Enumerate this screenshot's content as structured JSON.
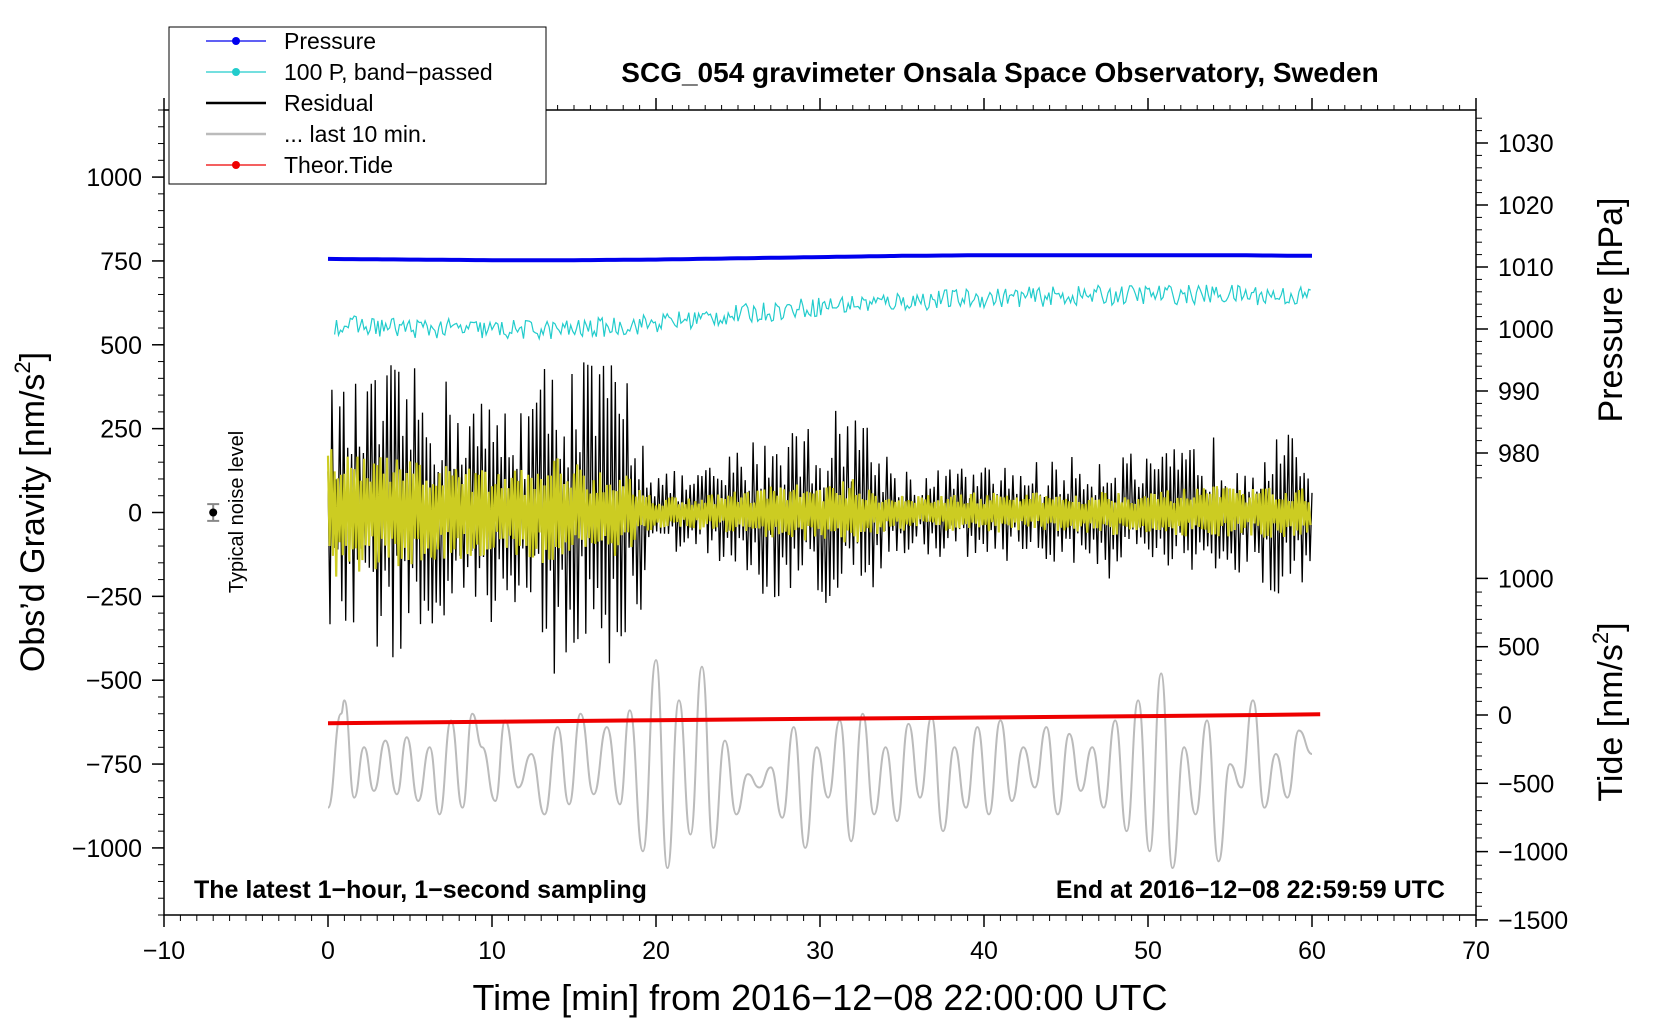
{
  "chart_data": {
    "type": "line",
    "title": "SCG_054 gravimeter Onsala Space Observatory, Sweden",
    "xlabel": "Time [min] from 2016−12−08 22:00:00 UTC",
    "ylabel_left_main": "Obs’d Gravity [nm/s",
    "ylabel_left_sup": "2",
    "ylabel_left_end": "]",
    "ylabel_right_pressure": "Pressure [hPa]",
    "ylabel_right_tide_main": "Tide [nm/s",
    "ylabel_right_tide_sup": "2",
    "ylabel_right_tide_end": "]",
    "xlim": [
      -10,
      70
    ],
    "ylim": [
      -1200,
      1200
    ],
    "pressure_lim": [
      972,
      1035
    ],
    "tide_lim": [
      -1500,
      1000
    ],
    "x_ticks": [
      {
        "v": -10,
        "label": "−10"
      },
      {
        "v": 0,
        "label": "0"
      },
      {
        "v": 10,
        "label": "10"
      },
      {
        "v": 20,
        "label": "20"
      },
      {
        "v": 30,
        "label": "30"
      },
      {
        "v": 40,
        "label": "40"
      },
      {
        "v": 50,
        "label": "50"
      },
      {
        "v": 60,
        "label": "60"
      },
      {
        "v": 70,
        "label": "70"
      }
    ],
    "y_ticks": [
      {
        "v": 1000,
        "label": "1000"
      },
      {
        "v": 750,
        "label": "750"
      },
      {
        "v": 500,
        "label": "500"
      },
      {
        "v": 250,
        "label": "250"
      },
      {
        "v": 0,
        "label": "0"
      },
      {
        "v": -250,
        "label": "−250"
      },
      {
        "v": -500,
        "label": "−500"
      },
      {
        "v": -750,
        "label": "−750"
      },
      {
        "v": -1000,
        "label": "−1000"
      }
    ],
    "pressure_ticks": [
      {
        "v": 1030,
        "label": "1030"
      },
      {
        "v": 1020,
        "label": "1020"
      },
      {
        "v": 1010,
        "label": "1010"
      },
      {
        "v": 1000,
        "label": "1000"
      },
      {
        "v": 990,
        "label": "990"
      },
      {
        "v": 980,
        "label": "980"
      }
    ],
    "tide_ticks": [
      {
        "v": 1000,
        "label": "1000"
      },
      {
        "v": 500,
        "label": "500"
      },
      {
        "v": 0,
        "label": "0"
      },
      {
        "v": -500,
        "label": "−500"
      },
      {
        "v": -1000,
        "label": "−1000"
      },
      {
        "v": -1500,
        "label": "−1500"
      }
    ],
    "legend": [
      {
        "label": "Pressure",
        "color": "#0000ee",
        "marker": true
      },
      {
        "label": "100 P, band−passed",
        "color": "#22cccc",
        "marker": true
      },
      {
        "label": "Residual",
        "color": "#000000",
        "marker": false
      },
      {
        "label": "... last 10 min.",
        "color": "#bbbbbb",
        "marker": false
      },
      {
        "label": "Theor.Tide",
        "color": "#ee0000",
        "marker": true
      }
    ],
    "annotations": {
      "bottom_left": "The latest 1−hour, 1−second sampling",
      "bottom_right": "End at 2016−12−08 22:59:59 UTC",
      "noise_label": "Typical noise level"
    },
    "noise_point": {
      "x": -7,
      "y": 0,
      "err": 25
    },
    "series": [
      {
        "name": "Pressure",
        "color": "#0000ee",
        "axis": "pressure",
        "x": [
          0,
          5,
          10,
          15,
          20,
          25,
          30,
          35,
          40,
          45,
          50,
          55,
          60
        ],
        "values": [
          1011.3,
          1011.2,
          1011.1,
          1011.1,
          1011.2,
          1011.4,
          1011.6,
          1011.8,
          1011.9,
          1011.9,
          1011.9,
          1011.9,
          1011.8
        ]
      },
      {
        "name": "100 P, band-passed",
        "color": "#22cccc",
        "axis": "gravity",
        "x": [
          0,
          5,
          10,
          15,
          20,
          25,
          30,
          35,
          40,
          45,
          50,
          55,
          60
        ],
        "values": [
          560,
          550,
          545,
          545,
          565,
          590,
          615,
          630,
          640,
          645,
          650,
          650,
          645
        ],
        "noise_amplitude": 30
      },
      {
        "name": "Residual",
        "color": "#000000",
        "axis": "gravity",
        "envelope_x": [
          0,
          2,
          4,
          6,
          8,
          10,
          12,
          14,
          16,
          18,
          19,
          20,
          22,
          24,
          26,
          28,
          30,
          32,
          34,
          36,
          38,
          40,
          42,
          44,
          46,
          48,
          50,
          52,
          54,
          56,
          58,
          60
        ],
        "envelope": [
          380,
          390,
          450,
          420,
          400,
          330,
          380,
          500,
          480,
          470,
          320,
          130,
          120,
          160,
          230,
          300,
          260,
          370,
          190,
          120,
          140,
          140,
          150,
          160,
          170,
          210,
          160,
          200,
          230,
          200,
          250,
          200
        ]
      },
      {
        "name": "Band-passed residual",
        "color": "#cccc22",
        "axis": "gravity",
        "envelope_x": [
          0,
          2,
          4,
          6,
          8,
          10,
          12,
          14,
          16,
          18,
          19,
          20,
          22,
          24,
          26,
          28,
          30,
          32,
          34,
          36,
          38,
          40,
          42,
          44,
          46,
          48,
          50,
          52,
          54,
          56,
          58,
          60
        ],
        "envelope": [
          200,
          180,
          170,
          150,
          140,
          130,
          130,
          170,
          140,
          130,
          80,
          50,
          50,
          60,
          70,
          90,
          80,
          100,
          60,
          50,
          60,
          60,
          60,
          60,
          60,
          70,
          60,
          70,
          80,
          70,
          80,
          70
        ]
      },
      {
        "name": "... last 10 min.",
        "color": "#bbbbbb",
        "axis": "gravity",
        "x": [
          0,
          0.8,
          1,
          1.6,
          2.2,
          2.8,
          3.5,
          4.2,
          4.8,
          5.5,
          6.2,
          6.8,
          7.5,
          8.2,
          8.8,
          9.4,
          10.2,
          10.8,
          11.6,
          12.4,
          13.2,
          14,
          14.7,
          15.4,
          16.2,
          17,
          17.8,
          18.4,
          19.2,
          20,
          20.7,
          21.4,
          22.1,
          22.8,
          23.5,
          24.2,
          24.9,
          25.6,
          26.3,
          27,
          27.7,
          28.4,
          29.1,
          29.8,
          30.5,
          31.2,
          31.9,
          32.6,
          33.3,
          34,
          34.7,
          35.4,
          36.1,
          36.8,
          37.5,
          38.2,
          38.9,
          39.6,
          40.3,
          41,
          41.7,
          42.4,
          43.1,
          43.8,
          44.5,
          45.2,
          45.9,
          46.6,
          47.3,
          48,
          48.7,
          49.4,
          50.1,
          50.8,
          51.5,
          52.2,
          52.9,
          53.6,
          54.3,
          55,
          55.7,
          56.4,
          57.1,
          57.8,
          58.5,
          59.2,
          60
        ],
        "values": [
          -880,
          -600,
          -560,
          -850,
          -700,
          -830,
          -680,
          -840,
          -670,
          -860,
          -700,
          -900,
          -620,
          -880,
          -600,
          -700,
          -860,
          -620,
          -820,
          -720,
          -900,
          -640,
          -870,
          -600,
          -840,
          -640,
          -870,
          -590,
          -1010,
          -440,
          -1060,
          -560,
          -960,
          -460,
          -1000,
          -680,
          -900,
          -780,
          -820,
          -760,
          -910,
          -640,
          -1000,
          -700,
          -850,
          -620,
          -980,
          -600,
          -900,
          -700,
          -920,
          -630,
          -850,
          -610,
          -950,
          -700,
          -880,
          -640,
          -900,
          -620,
          -860,
          -700,
          -820,
          -640,
          -900,
          -660,
          -830,
          -700,
          -880,
          -620,
          -950,
          -560,
          -1010,
          -480,
          -1060,
          -700,
          -900,
          -620,
          -1040,
          -750,
          -820,
          -560,
          -880,
          -720,
          -850,
          -650,
          -720
        ]
      },
      {
        "name": "Theor.Tide",
        "color": "#ee0000",
        "axis": "tide",
        "x": [
          0,
          10,
          20,
          30,
          40,
          50,
          60.5
        ],
        "values": [
          -60,
          -50,
          -38,
          -28,
          -18,
          -8,
          5
        ]
      }
    ]
  }
}
